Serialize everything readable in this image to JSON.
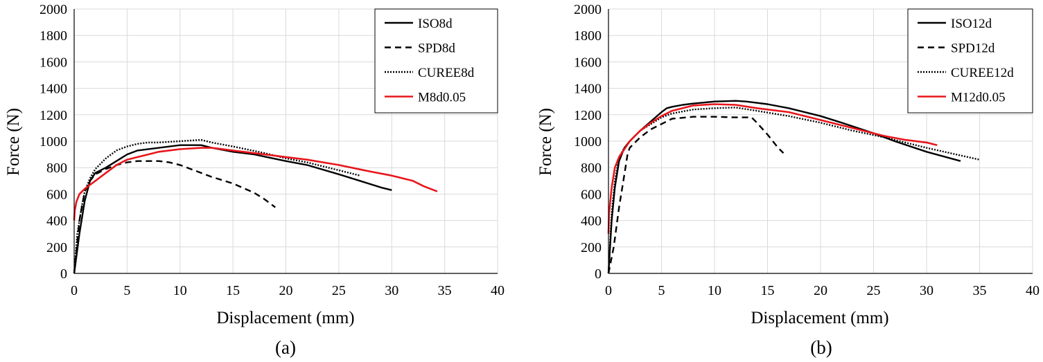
{
  "figure": {
    "panel_labels": [
      "(a)",
      "(b)"
    ]
  },
  "colors": {
    "black": "#000000",
    "red": "#e8161b",
    "grid": "#d9d9d9"
  },
  "chart_data": [
    {
      "type": "line",
      "panel": "(a)",
      "xlabel": "Displacement (mm)",
      "ylabel": "Force (N)",
      "xlim": [
        0,
        40
      ],
      "ylim": [
        0,
        2000
      ],
      "xticks": [
        0,
        5,
        10,
        15,
        20,
        25,
        30,
        35,
        40
      ],
      "yticks": [
        0,
        200,
        400,
        600,
        800,
        1000,
        1200,
        1400,
        1600,
        1800,
        2000
      ],
      "grid": true,
      "legend_position": "top-right",
      "series": [
        {
          "name": "ISO8d",
          "style": "solid",
          "color": "#000000",
          "x": [
            0,
            0.5,
            1,
            1.5,
            2,
            3,
            4,
            5,
            6,
            8,
            10,
            12,
            13,
            15,
            17,
            20,
            22,
            25,
            27,
            29,
            30
          ],
          "y": [
            0,
            300,
            550,
            700,
            760,
            800,
            850,
            900,
            930,
            950,
            970,
            970,
            950,
            920,
            900,
            850,
            820,
            750,
            700,
            650,
            630
          ]
        },
        {
          "name": "SPD8d",
          "style": "dashed",
          "color": "#000000",
          "x": [
            0,
            0.5,
            1,
            1.5,
            2,
            3,
            4,
            5,
            6,
            8,
            9,
            10,
            11,
            13,
            15,
            17,
            18,
            19
          ],
          "y": [
            0,
            400,
            620,
            700,
            750,
            790,
            820,
            840,
            850,
            850,
            840,
            820,
            790,
            730,
            680,
            610,
            560,
            500
          ]
        },
        {
          "name": "CUREE8d",
          "style": "dotted",
          "color": "#000000",
          "x": [
            0,
            0.3,
            0.7,
            1,
            1.5,
            2,
            3,
            4,
            5,
            6,
            7,
            8,
            10,
            12,
            13,
            15,
            18,
            20,
            22,
            25,
            27
          ],
          "y": [
            0,
            300,
            500,
            620,
            720,
            790,
            870,
            930,
            960,
            980,
            990,
            990,
            1000,
            1010,
            990,
            960,
            910,
            870,
            840,
            780,
            740
          ]
        },
        {
          "name": "M8d0.05",
          "style": "solid",
          "color": "#e8161b",
          "x": [
            0,
            0.05,
            0.2,
            0.5,
            1,
            1.5,
            2,
            3,
            4,
            5,
            6,
            7,
            8,
            10,
            12,
            13,
            15,
            17,
            20,
            22,
            25,
            28,
            30,
            32,
            33,
            34.3
          ],
          "y": [
            400,
            470,
            540,
            600,
            640,
            670,
            700,
            760,
            820,
            860,
            880,
            900,
            920,
            940,
            950,
            950,
            930,
            910,
            880,
            860,
            820,
            770,
            740,
            700,
            660,
            620
          ]
        }
      ]
    },
    {
      "type": "line",
      "panel": "(b)",
      "xlabel": "Displacement (mm)",
      "ylabel": "Force (N)",
      "xlim": [
        0,
        40
      ],
      "ylim": [
        0,
        2000
      ],
      "xticks": [
        0,
        5,
        10,
        15,
        20,
        25,
        30,
        35,
        40
      ],
      "yticks": [
        0,
        200,
        400,
        600,
        800,
        1000,
        1200,
        1400,
        1600,
        1800,
        2000
      ],
      "grid": true,
      "legend_position": "top-right",
      "series": [
        {
          "name": "ISO12d",
          "style": "solid",
          "color": "#000000",
          "x": [
            0,
            0.3,
            0.6,
            1,
            1.5,
            2,
            3,
            4,
            5,
            5.5,
            6,
            7,
            8,
            10,
            12,
            13,
            15,
            17,
            20,
            22,
            25,
            27,
            30,
            33.2
          ],
          "y": [
            0,
            400,
            650,
            850,
            950,
            1000,
            1080,
            1150,
            1220,
            1250,
            1260,
            1275,
            1285,
            1300,
            1305,
            1300,
            1280,
            1250,
            1190,
            1140,
            1060,
            1000,
            920,
            850
          ]
        },
        {
          "name": "SPD12d",
          "style": "dashed",
          "color": "#000000",
          "x": [
            0,
            0.5,
            1,
            1.5,
            1.8,
            2,
            3,
            4,
            5,
            6,
            8,
            10,
            12,
            13.5,
            14,
            15,
            16,
            16.5
          ],
          "y": [
            0,
            200,
            500,
            750,
            900,
            950,
            1030,
            1090,
            1130,
            1170,
            1185,
            1185,
            1180,
            1180,
            1140,
            1050,
            950,
            910
          ]
        },
        {
          "name": "CUREE12d",
          "style": "dotted",
          "color": "#000000",
          "x": [
            0,
            0.3,
            0.6,
            1,
            1.5,
            2,
            3,
            4,
            5,
            6,
            8,
            10,
            12,
            14,
            17,
            20,
            23,
            26,
            30,
            35
          ],
          "y": [
            0,
            450,
            700,
            880,
            950,
            1000,
            1080,
            1130,
            1180,
            1210,
            1240,
            1250,
            1255,
            1230,
            1190,
            1140,
            1080,
            1030,
            950,
            860
          ]
        },
        {
          "name": "M12d0.05",
          "style": "solid",
          "color": "#e8161b",
          "x": [
            0,
            0.05,
            0.3,
            0.6,
            1,
            1.5,
            2,
            3,
            4,
            5,
            6,
            8,
            10,
            12,
            14,
            17,
            20,
            23,
            26,
            28,
            30,
            31
          ],
          "y": [
            300,
            450,
            650,
            800,
            880,
            940,
            1000,
            1080,
            1140,
            1190,
            1230,
            1270,
            1280,
            1275,
            1250,
            1220,
            1160,
            1100,
            1040,
            1010,
            990,
            970
          ]
        }
      ]
    }
  ]
}
